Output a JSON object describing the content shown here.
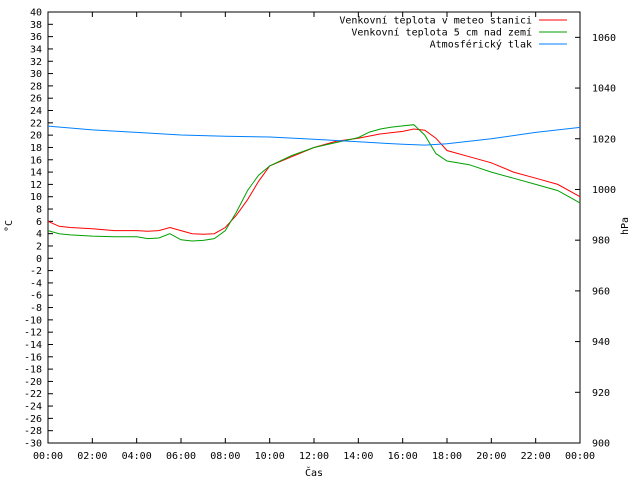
{
  "chart_data": {
    "type": "line",
    "title": "",
    "xlabel": "Čas",
    "ylabel": "°C",
    "y2label": "hPa",
    "xlim": [
      0,
      24
    ],
    "ylim": [
      -30,
      40
    ],
    "y2lim": [
      900,
      1070
    ],
    "x_ticks": [
      {
        "x": 0,
        "label": "00:00"
      },
      {
        "x": 2,
        "label": "02:00"
      },
      {
        "x": 4,
        "label": "04:00"
      },
      {
        "x": 6,
        "label": "06:00"
      },
      {
        "x": 8,
        "label": "08:00"
      },
      {
        "x": 10,
        "label": "10:00"
      },
      {
        "x": 12,
        "label": "12:00"
      },
      {
        "x": 14,
        "label": "14:00"
      },
      {
        "x": 16,
        "label": "16:00"
      },
      {
        "x": 18,
        "label": "18:00"
      },
      {
        "x": 20,
        "label": "20:00"
      },
      {
        "x": 22,
        "label": "22:00"
      },
      {
        "x": 24,
        "label": "00:00"
      }
    ],
    "y_ticks": [
      40,
      38,
      36,
      34,
      32,
      30,
      28,
      26,
      24,
      22,
      20,
      18,
      16,
      14,
      12,
      10,
      8,
      6,
      4,
      2,
      0,
      -2,
      -4,
      -6,
      -8,
      -10,
      -12,
      -14,
      -16,
      -18,
      -20,
      -22,
      -24,
      -26,
      -28,
      -30
    ],
    "y2_ticks": [
      1060,
      1040,
      1020,
      1000,
      980,
      960,
      940,
      920,
      900
    ],
    "grid": false,
    "legend": "top-right",
    "series": [
      {
        "name": "Venkovní teplota v meteo stanici",
        "color": "#ff0000",
        "axis": "left",
        "x": [
          0,
          0.5,
          1,
          2,
          3,
          4,
          4.5,
          5,
          5.5,
          6,
          6.5,
          7,
          7.5,
          8,
          8.5,
          9,
          9.5,
          10,
          11,
          12,
          13,
          14,
          15,
          16,
          16.5,
          17,
          17.5,
          18,
          19,
          20,
          21,
          22,
          23,
          24
        ],
        "y": [
          6,
          5.2,
          5,
          4.8,
          4.5,
          4.5,
          4.4,
          4.5,
          5,
          4.5,
          4,
          3.9,
          4,
          5,
          7,
          9.5,
          12.5,
          15,
          16.5,
          18,
          19,
          19.5,
          20.2,
          20.6,
          21,
          20.8,
          19.5,
          17.5,
          16.5,
          15.5,
          14,
          13,
          12,
          10
        ]
      },
      {
        "name": "Venkovní teplota 5 cm nad zemí",
        "color": "#00a000",
        "axis": "left",
        "x": [
          0,
          0.5,
          1,
          2,
          3,
          4,
          4.5,
          5,
          5.5,
          6,
          6.5,
          7,
          7.5,
          8,
          8.5,
          9,
          9.5,
          10,
          11,
          12,
          13,
          14,
          14.5,
          15,
          15.5,
          16,
          16.5,
          17,
          17.5,
          18,
          19,
          20,
          21,
          22,
          23,
          24
        ],
        "y": [
          4.5,
          4,
          3.8,
          3.6,
          3.5,
          3.5,
          3.2,
          3.3,
          4,
          3,
          2.8,
          2.9,
          3.2,
          4.5,
          7.5,
          11,
          13.5,
          15,
          16.7,
          18,
          18.8,
          19.6,
          20.5,
          21,
          21.3,
          21.5,
          21.7,
          20,
          17,
          15.8,
          15.2,
          14,
          13,
          12,
          11,
          9
        ]
      },
      {
        "name": "Atmosférický tlak",
        "color": "#0080ff",
        "axis": "right",
        "x": [
          0,
          2,
          4,
          6,
          8,
          10,
          12,
          14,
          16,
          17,
          18,
          20,
          22,
          24
        ],
        "y": [
          1025,
          1023.5,
          1022.5,
          1021.5,
          1021,
          1020.7,
          1019.8,
          1018.8,
          1017.8,
          1017.5,
          1018,
          1020,
          1022.5,
          1024.5
        ]
      }
    ]
  }
}
